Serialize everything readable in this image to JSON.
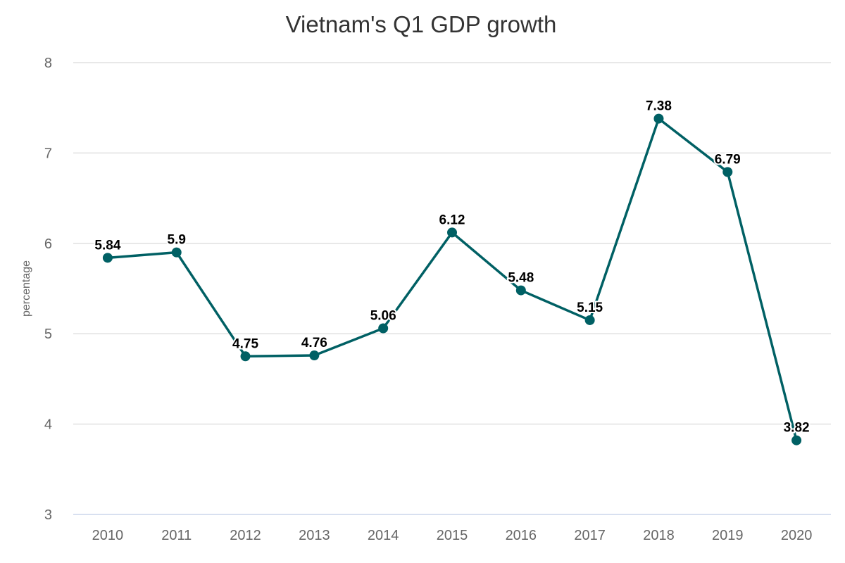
{
  "chart_data": {
    "type": "line",
    "title": "Vietnam's Q1 GDP growth",
    "xlabel": "",
    "ylabel": "percentage",
    "categories": [
      "2010",
      "2011",
      "2012",
      "2013",
      "2014",
      "2015",
      "2016",
      "2017",
      "2018",
      "2019",
      "2020"
    ],
    "series": [
      {
        "values": [
          5.84,
          5.9,
          4.75,
          4.76,
          5.06,
          6.12,
          5.48,
          5.15,
          7.38,
          6.79,
          3.82
        ],
        "value_labels": [
          "5.84",
          "5.9",
          "4.75",
          "4.76",
          "5.06",
          "6.12",
          "5.48",
          "5.15",
          "7.38",
          "6.79",
          "3.82"
        ],
        "color": "#006064"
      }
    ],
    "ylim": [
      3,
      8
    ],
    "yticks": [
      "3",
      "4",
      "5",
      "6",
      "7",
      "8"
    ],
    "grid": true,
    "legend": "none",
    "colors": {
      "gridline": "#e0e0e0",
      "axis_line": "#ccd6eb",
      "text": "#666666",
      "title": "#333333"
    }
  }
}
